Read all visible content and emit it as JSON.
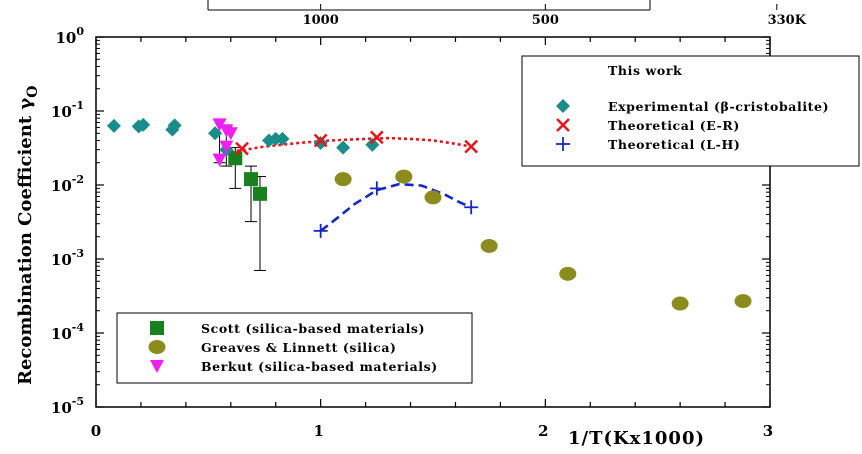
{
  "chart_data": {
    "type": "scatter",
    "title": "",
    "ylabel": "Recombination Coefficient γ",
    "ylabel_subscript": "O",
    "xlabel": "1/T(Kx1000)",
    "xlim": [
      0,
      3
    ],
    "ylim": [
      1e-05,
      1
    ],
    "yscale": "log",
    "x_ticks": [
      "0",
      "1",
      "2",
      "3"
    ],
    "y_ticks": [
      {
        "base": "10",
        "exp": "0",
        "value": 1
      },
      {
        "base": "10",
        "exp": "-1",
        "value": 0.1
      },
      {
        "base": "10",
        "exp": "-2",
        "value": 0.01
      },
      {
        "base": "10",
        "exp": "-3",
        "value": 0.001
      },
      {
        "base": "10",
        "exp": "-4",
        "value": 0.0001
      },
      {
        "base": "10",
        "exp": "-5",
        "value": 1e-05
      }
    ],
    "top_axis_ticks": [
      {
        "label": "1000",
        "x": 1.0
      },
      {
        "label": "500",
        "x": 2.0
      },
      {
        "label": "330K",
        "x": 3.0303
      }
    ],
    "legend_top": {
      "title": "This work",
      "placement": "top-right",
      "entries": [
        {
          "name": "Experimental (β-cristobalite)",
          "series": 0
        },
        {
          "name": "Theoretical (E-R)",
          "series": 1
        },
        {
          "name": "Theoretical (L-H)",
          "series": 2
        }
      ]
    },
    "legend_bottom": {
      "placement": "bottom-left",
      "entries": [
        {
          "name": "Scott (silica-based materials)",
          "series": 3
        },
        {
          "name": "Greaves & Linnett (silica)",
          "series": 4
        },
        {
          "name": "Berkut (silica-based materials)",
          "series": 5
        }
      ]
    },
    "series": [
      {
        "name": "Experimental (β-cristobalite)",
        "marker": "diamond",
        "color": "#1a8c8c",
        "points": [
          [
            0.08,
            0.063
          ],
          [
            0.19,
            0.062
          ],
          [
            0.21,
            0.065
          ],
          [
            0.34,
            0.056
          ],
          [
            0.35,
            0.064
          ],
          [
            0.53,
            0.05
          ],
          [
            0.58,
            0.03
          ],
          [
            0.77,
            0.04
          ],
          [
            0.8,
            0.042
          ],
          [
            0.83,
            0.042
          ],
          [
            1.0,
            0.037
          ],
          [
            1.1,
            0.032
          ],
          [
            1.23,
            0.035
          ]
        ]
      },
      {
        "name": "Theoretical (E-R)",
        "marker": "x",
        "color": "#e8141a",
        "line": "dotted",
        "points": [
          [
            0.65,
            0.031
          ],
          [
            1.0,
            0.04
          ],
          [
            1.25,
            0.044
          ],
          [
            1.67,
            0.033
          ]
        ],
        "curve": [
          [
            0.6,
            0.028
          ],
          [
            0.75,
            0.033
          ],
          [
            0.9,
            0.037
          ],
          [
            1.05,
            0.04
          ],
          [
            1.2,
            0.042
          ],
          [
            1.3,
            0.043
          ],
          [
            1.4,
            0.042
          ],
          [
            1.5,
            0.04
          ],
          [
            1.6,
            0.036
          ],
          [
            1.67,
            0.033
          ]
        ]
      },
      {
        "name": "Theoretical (L-H)",
        "marker": "plus",
        "color": "#1428c8",
        "line": "dashed",
        "points": [
          [
            1.0,
            0.0024
          ],
          [
            1.25,
            0.009
          ],
          [
            1.67,
            0.005
          ]
        ],
        "curve": [
          [
            1.0,
            0.0024
          ],
          [
            1.07,
            0.0035
          ],
          [
            1.15,
            0.0055
          ],
          [
            1.25,
            0.0085
          ],
          [
            1.35,
            0.0103
          ],
          [
            1.45,
            0.0098
          ],
          [
            1.55,
            0.0075
          ],
          [
            1.62,
            0.0058
          ],
          [
            1.67,
            0.005
          ]
        ]
      },
      {
        "name": "Scott (silica-based materials)",
        "marker": "square",
        "color": "#18801e",
        "points": [
          [
            0.62,
            0.023
          ],
          [
            0.69,
            0.012
          ],
          [
            0.73,
            0.0076
          ]
        ],
        "errorbars": [
          [
            0.62,
            0.009,
            0.032
          ],
          [
            0.69,
            0.0032,
            0.018
          ],
          [
            0.73,
            0.0007,
            0.013
          ]
        ]
      },
      {
        "name": "Greaves & Linnett (silica)",
        "marker": "ellipse",
        "color": "#8c8c1e",
        "points": [
          [
            1.1,
            0.012
          ],
          [
            1.37,
            0.013
          ],
          [
            1.5,
            0.0068
          ],
          [
            1.75,
            0.0015
          ],
          [
            2.1,
            0.00063
          ],
          [
            2.6,
            0.00025
          ],
          [
            2.88,
            0.00027
          ]
        ]
      },
      {
        "name": "Berkut (silica-based materials)",
        "marker": "triangle-down",
        "color": "#f01ef0",
        "points": [
          [
            0.55,
            0.066
          ],
          [
            0.58,
            0.055
          ],
          [
            0.6,
            0.05
          ],
          [
            0.55,
            0.022
          ],
          [
            0.58,
            0.033
          ]
        ],
        "errorbars": [
          [
            0.55,
            0.02,
            0.075
          ],
          [
            0.58,
            0.018,
            0.06
          ]
        ]
      }
    ]
  }
}
